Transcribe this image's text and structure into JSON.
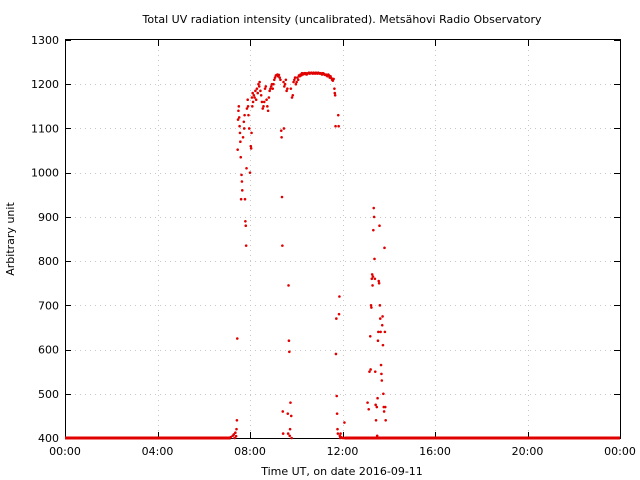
{
  "chart_data": {
    "type": "scatter",
    "title": "Total UV radiation intensity (uncalibrated). Metsähovi Radio Observatory",
    "xlabel": "Time UT, on date 2016-09-11",
    "ylabel": "Arbitrary unit",
    "xlim": [
      "00:00",
      "24:00"
    ],
    "ylim": [
      400,
      1300
    ],
    "x_ticks": [
      "00:00",
      "04:00",
      "08:00",
      "12:00",
      "16:00",
      "20:00",
      "00:00"
    ],
    "y_ticks": [
      400,
      500,
      600,
      700,
      800,
      900,
      1000,
      1100,
      1200,
      1300
    ],
    "grid": true,
    "marker_color": "#e00000",
    "baseline_segments": [
      {
        "from": "00:00",
        "to": "07:10",
        "value": 400
      },
      {
        "from": "12:05",
        "to": "24:00",
        "value": 400
      }
    ],
    "series": [
      {
        "points": [
          [
            "07:10",
            402
          ],
          [
            "07:15",
            405
          ],
          [
            "07:18",
            408
          ],
          [
            "07:20",
            400
          ],
          [
            "07:22",
            412
          ],
          [
            "07:24",
            404
          ],
          [
            "07:25",
            420
          ],
          [
            "07:26",
            440
          ],
          [
            "07:27",
            625
          ],
          [
            "07:28",
            1052
          ],
          [
            "07:29",
            1120
          ],
          [
            "07:30",
            1140
          ],
          [
            "07:31",
            1150
          ],
          [
            "07:32",
            1125
          ],
          [
            "07:33",
            1105
          ],
          [
            "07:34",
            1090
          ],
          [
            "07:35",
            1070
          ],
          [
            "07:36",
            1035
          ],
          [
            "07:37",
            940
          ],
          [
            "07:38",
            995
          ],
          [
            "07:39",
            980
          ],
          [
            "07:40",
            960
          ],
          [
            "07:42",
            1080
          ],
          [
            "07:44",
            1115
          ],
          [
            "07:45",
            1100
          ],
          [
            "07:46",
            1130
          ],
          [
            "07:47",
            940
          ],
          [
            "07:48",
            890
          ],
          [
            "07:49",
            880
          ],
          [
            "07:50",
            835
          ],
          [
            "07:51",
            1010
          ],
          [
            "07:52",
            1145
          ],
          [
            "07:54",
            1165
          ],
          [
            "07:55",
            1150
          ],
          [
            "07:56",
            1130
          ],
          [
            "07:58",
            1100
          ],
          [
            "08:00",
            1000
          ],
          [
            "08:02",
            1060
          ],
          [
            "08:03",
            1055
          ],
          [
            "08:04",
            1090
          ],
          [
            "08:05",
            1170
          ],
          [
            "08:06",
            1150
          ],
          [
            "08:07",
            1180
          ],
          [
            "08:08",
            1160
          ],
          [
            "08:10",
            1175
          ],
          [
            "08:12",
            1170
          ],
          [
            "08:14",
            1185
          ],
          [
            "08:16",
            1165
          ],
          [
            "08:18",
            1190
          ],
          [
            "08:20",
            1180
          ],
          [
            "08:22",
            1200
          ],
          [
            "08:24",
            1195
          ],
          [
            "08:25",
            1205
          ],
          [
            "08:27",
            1185
          ],
          [
            "08:29",
            1175
          ],
          [
            "08:31",
            1160
          ],
          [
            "08:33",
            1145
          ],
          [
            "08:35",
            1150
          ],
          [
            "08:37",
            1160
          ],
          [
            "08:39",
            1190
          ],
          [
            "08:41",
            1195
          ],
          [
            "08:43",
            1165
          ],
          [
            "08:45",
            1150
          ],
          [
            "08:47",
            1140
          ],
          [
            "08:49",
            1170
          ],
          [
            "08:51",
            1185
          ],
          [
            "08:53",
            1190
          ],
          [
            "08:55",
            1195
          ],
          [
            "08:57",
            1200
          ],
          [
            "08:59",
            1190
          ],
          [
            "09:01",
            1200
          ],
          [
            "09:03",
            1210
          ],
          [
            "09:05",
            1215
          ],
          [
            "09:07",
            1220
          ],
          [
            "09:09",
            1220
          ],
          [
            "09:11",
            1222
          ],
          [
            "09:13",
            1218
          ],
          [
            "09:15",
            1221
          ],
          [
            "09:17",
            1215
          ],
          [
            "09:19",
            1210
          ],
          [
            "09:21",
            1095
          ],
          [
            "09:22",
            1080
          ],
          [
            "09:23",
            945
          ],
          [
            "09:24",
            835
          ],
          [
            "09:25",
            460
          ],
          [
            "09:26",
            410
          ],
          [
            "09:27",
            1205
          ],
          [
            "09:28",
            1100
          ],
          [
            "09:29",
            1195
          ],
          [
            "09:31",
            1200
          ],
          [
            "09:33",
            1210
          ],
          [
            "09:35",
            1185
          ],
          [
            "09:37",
            1190
          ],
          [
            "09:38",
            455
          ],
          [
            "09:39",
            410
          ],
          [
            "09:40",
            745
          ],
          [
            "09:41",
            620
          ],
          [
            "09:42",
            595
          ],
          [
            "09:43",
            405
          ],
          [
            "09:44",
            420
          ],
          [
            "09:45",
            480
          ],
          [
            "09:46",
            1190
          ],
          [
            "09:47",
            450
          ],
          [
            "09:48",
            400
          ],
          [
            "09:49",
            1170
          ],
          [
            "09:51",
            1175
          ],
          [
            "09:53",
            1205
          ],
          [
            "09:55",
            1210
          ],
          [
            "09:57",
            1215
          ],
          [
            "09:59",
            1200
          ],
          [
            "10:01",
            1205
          ],
          [
            "10:03",
            1215
          ],
          [
            "10:05",
            1210
          ],
          [
            "10:07",
            1220
          ],
          [
            "10:09",
            1218
          ],
          [
            "10:11",
            1222
          ],
          [
            "10:13",
            1220
          ],
          [
            "10:15",
            1225
          ],
          [
            "10:17",
            1222
          ],
          [
            "10:19",
            1224
          ],
          [
            "10:21",
            1225
          ],
          [
            "10:23",
            1223
          ],
          [
            "10:25",
            1225
          ],
          [
            "10:27",
            1222
          ],
          [
            "10:29",
            1224
          ],
          [
            "10:31",
            1225
          ],
          [
            "10:33",
            1226
          ],
          [
            "10:35",
            1224
          ],
          [
            "10:37",
            1225
          ],
          [
            "10:39",
            1226
          ],
          [
            "10:41",
            1225
          ],
          [
            "10:43",
            1224
          ],
          [
            "10:45",
            1226
          ],
          [
            "10:47",
            1225
          ],
          [
            "10:49",
            1224
          ],
          [
            "10:51",
            1226
          ],
          [
            "10:53",
            1225
          ],
          [
            "10:55",
            1224
          ],
          [
            "10:57",
            1226
          ],
          [
            "10:59",
            1225
          ],
          [
            "11:01",
            1224
          ],
          [
            "11:03",
            1225
          ],
          [
            "11:05",
            1224
          ],
          [
            "11:07",
            1222
          ],
          [
            "11:09",
            1225
          ],
          [
            "11:11",
            1224
          ],
          [
            "11:13",
            1222
          ],
          [
            "11:15",
            1221
          ],
          [
            "11:17",
            1222
          ],
          [
            "11:19",
            1220
          ],
          [
            "11:21",
            1218
          ],
          [
            "11:23",
            1222
          ],
          [
            "11:25",
            1220
          ],
          [
            "11:27",
            1215
          ],
          [
            "11:29",
            1218
          ],
          [
            "11:31",
            1214
          ],
          [
            "11:33",
            1210
          ],
          [
            "11:35",
            1208
          ],
          [
            "11:37",
            1212
          ],
          [
            "11:39",
            1190
          ],
          [
            "11:40",
            1180
          ],
          [
            "11:41",
            1175
          ],
          [
            "11:42",
            1105
          ],
          [
            "11:43",
            590
          ],
          [
            "11:44",
            670
          ],
          [
            "11:45",
            495
          ],
          [
            "11:46",
            455
          ],
          [
            "11:47",
            420
          ],
          [
            "11:48",
            410
          ],
          [
            "11:49",
            1130
          ],
          [
            "11:50",
            1105
          ],
          [
            "11:51",
            680
          ],
          [
            "11:52",
            720
          ],
          [
            "11:53",
            405
          ],
          [
            "11:54",
            400
          ],
          [
            "11:55",
            410
          ],
          [
            "11:56",
            402
          ],
          [
            "11:58",
            401
          ],
          [
            "12:00",
            400
          ],
          [
            "12:03",
            400
          ],
          [
            "12:05",
            435
          ],
          [
            "13:00",
            400
          ],
          [
            "13:05",
            480
          ],
          [
            "13:08",
            465
          ],
          [
            "13:10",
            550
          ],
          [
            "13:12",
            630
          ],
          [
            "13:13",
            555
          ],
          [
            "13:14",
            700
          ],
          [
            "13:15",
            695
          ],
          [
            "13:16",
            760
          ],
          [
            "13:17",
            770
          ],
          [
            "13:18",
            745
          ],
          [
            "13:19",
            765
          ],
          [
            "13:20",
            870
          ],
          [
            "13:21",
            920
          ],
          [
            "13:22",
            900
          ],
          [
            "13:23",
            805
          ],
          [
            "13:24",
            760
          ],
          [
            "13:25",
            550
          ],
          [
            "13:26",
            475
          ],
          [
            "13:27",
            440
          ],
          [
            "13:28",
            400
          ],
          [
            "13:29",
            470
          ],
          [
            "13:30",
            405
          ],
          [
            "13:31",
            490
          ],
          [
            "13:32",
            620
          ],
          [
            "13:33",
            640
          ],
          [
            "13:34",
            755
          ],
          [
            "13:35",
            750
          ],
          [
            "13:36",
            880
          ],
          [
            "13:37",
            700
          ],
          [
            "13:38",
            670
          ],
          [
            "13:39",
            640
          ],
          [
            "13:40",
            565
          ],
          [
            "13:41",
            545
          ],
          [
            "13:42",
            530
          ],
          [
            "13:43",
            655
          ],
          [
            "13:44",
            675
          ],
          [
            "13:45",
            610
          ],
          [
            "13:46",
            500
          ],
          [
            "13:47",
            470
          ],
          [
            "13:48",
            460
          ],
          [
            "13:49",
            830
          ],
          [
            "13:50",
            640
          ],
          [
            "13:51",
            470
          ],
          [
            "13:52",
            440
          ],
          [
            "13:53",
            400
          ]
        ]
      }
    ]
  }
}
